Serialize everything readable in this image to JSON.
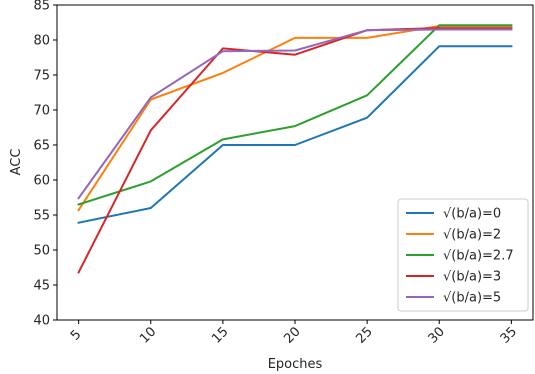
{
  "chart_data": {
    "type": "line",
    "title": "",
    "xlabel": "Epoches",
    "ylabel": "ACC",
    "x": [
      5,
      10,
      15,
      20,
      25,
      30,
      35
    ],
    "xticks": [
      "5",
      "10",
      "15",
      "20",
      "25",
      "30",
      "35"
    ],
    "yticks": [
      "40",
      "45",
      "50",
      "55",
      "60",
      "65",
      "70",
      "75",
      "80",
      "85"
    ],
    "xlim": [
      3.5,
      36.5
    ],
    "ylim": [
      40,
      85
    ],
    "grid": false,
    "legend_position": "lower-right",
    "series": [
      {
        "name": "√(b/a)=0",
        "color": "#1f77b4",
        "values": [
          53.9,
          56.0,
          65.0,
          65.0,
          68.9,
          79.1,
          79.1
        ]
      },
      {
        "name": "√(b/a)=2",
        "color": "#ff7f0e",
        "values": [
          55.7,
          71.5,
          75.3,
          80.3,
          80.3,
          82.0,
          82.0
        ]
      },
      {
        "name": "√(b/a)=2.7",
        "color": "#2ca02c",
        "values": [
          56.5,
          59.8,
          65.8,
          67.7,
          72.1,
          82.1,
          82.1
        ]
      },
      {
        "name": "√(b/a)=3",
        "color": "#d62728",
        "values": [
          46.8,
          67.1,
          78.8,
          77.9,
          81.4,
          81.7,
          81.7
        ]
      },
      {
        "name": "√(b/a)=5",
        "color": "#9467bd",
        "values": [
          57.4,
          71.8,
          78.4,
          78.5,
          81.4,
          81.5,
          81.5
        ]
      }
    ]
  }
}
